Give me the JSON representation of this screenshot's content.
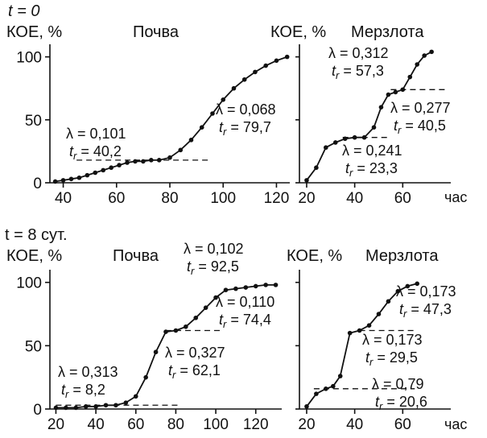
{
  "panels": [
    {
      "time_label": "t = 0",
      "ylabel": "КОЕ, %",
      "title": "Почва"
    },
    {
      "ylabel": "КОЕ, %",
      "title": "Мерзлота",
      "xunit": "час"
    },
    {
      "time_label": "t = 8 сут.",
      "ylabel": "КОЕ, %",
      "title": "Почва"
    },
    {
      "ylabel": "КОЕ, %",
      "title": "Мерзлота",
      "xunit": "час"
    }
  ],
  "chart_data": [
    {
      "type": "line",
      "title": "Почва",
      "ylabel": "КОЕ, %",
      "xlim": [
        35,
        125
      ],
      "ylim": [
        0,
        110
      ],
      "xticks": [
        40,
        60,
        80,
        100,
        120
      ],
      "yticks": [
        0,
        50,
        100
      ],
      "series": [
        {
          "x": [
            37,
            40,
            43,
            46,
            49,
            52,
            55,
            58,
            61,
            64,
            67,
            70,
            73,
            76,
            80,
            84,
            88,
            92,
            96,
            100,
            104,
            108,
            112,
            116,
            120,
            124
          ],
          "y": [
            1,
            2,
            3,
            4,
            6,
            8,
            10,
            12,
            14,
            16,
            17,
            17,
            18,
            18,
            20,
            26,
            34,
            44,
            55,
            66,
            75,
            82,
            88,
            93,
            97,
            100
          ]
        }
      ],
      "tangents": [
        {
          "x": [
            45,
            95
          ],
          "y": [
            18,
            18
          ]
        }
      ],
      "annotations": [
        {
          "lambda": "λ = 0,101",
          "tr": "40,2"
        },
        {
          "lambda": "λ = 0,068",
          "tr": "79,7"
        }
      ]
    },
    {
      "type": "line",
      "title": "Мерзлота",
      "ylabel": "КОЕ, %",
      "xlabel": "час",
      "xlim": [
        17,
        80
      ],
      "ylim": [
        0,
        110
      ],
      "xticks": [
        20,
        40,
        60
      ],
      "yticks": [],
      "series": [
        {
          "x": [
            20,
            24,
            28,
            32,
            36,
            40,
            44,
            48,
            51,
            54,
            57,
            60,
            63,
            66,
            69,
            72
          ],
          "y": [
            2,
            12,
            28,
            32,
            35,
            36,
            36,
            44,
            60,
            70,
            72,
            74,
            84,
            94,
            101,
            104
          ]
        }
      ],
      "tangents": [
        {
          "x": [
            35,
            55
          ],
          "y": [
            36,
            36
          ]
        },
        {
          "x": [
            55,
            78
          ],
          "y": [
            74,
            74
          ]
        }
      ],
      "annotations": [
        {
          "lambda": "λ = 0,312",
          "tr": "57,3"
        },
        {
          "lambda": "λ = 0,277",
          "tr": "40,5"
        },
        {
          "lambda": "λ = 0,241",
          "tr": "23,3"
        }
      ]
    },
    {
      "type": "line",
      "title": "Почва",
      "ylabel": "КОЕ, %",
      "xlim": [
        17,
        133
      ],
      "ylim": [
        0,
        110
      ],
      "xticks": [
        20,
        40,
        60,
        80,
        100,
        120
      ],
      "yticks": [
        0,
        50,
        100
      ],
      "series": [
        {
          "x": [
            20,
            25,
            30,
            35,
            40,
            45,
            50,
            55,
            60,
            65,
            70,
            75,
            80,
            85,
            90,
            95,
            100,
            105,
            110,
            115,
            120,
            125,
            130
          ],
          "y": [
            1,
            1,
            1,
            2,
            2,
            3,
            3,
            5,
            10,
            25,
            45,
            61,
            62,
            65,
            72,
            80,
            88,
            94,
            95,
            96,
            97,
            98,
            98
          ]
        }
      ],
      "tangents": [
        {
          "x": [
            20,
            82
          ],
          "y": [
            3,
            3
          ]
        },
        {
          "x": [
            75,
            102
          ],
          "y": [
            62,
            62
          ]
        }
      ],
      "annotations": [
        {
          "lambda": "λ = 0,102",
          "tr": "92,5"
        },
        {
          "lambda": "λ = 0,110",
          "tr": "74,4"
        },
        {
          "lambda": "λ = 0,327",
          "tr": "62,1"
        },
        {
          "lambda": "λ = 0,313",
          "tr": "8,2"
        }
      ]
    },
    {
      "type": "line",
      "title": "Мерзлота",
      "ylabel": "КОЕ, %",
      "xlabel": "час",
      "xlim": [
        17,
        80
      ],
      "ylim": [
        0,
        110
      ],
      "xticks": [
        20,
        40,
        60
      ],
      "yticks": [],
      "series": [
        {
          "x": [
            20,
            24,
            28,
            31,
            34,
            38,
            42,
            46,
            50,
            54,
            58,
            62,
            66
          ],
          "y": [
            2,
            12,
            16,
            18,
            26,
            60,
            62,
            66,
            75,
            85,
            93,
            97,
            99
          ]
        }
      ],
      "tangents": [
        {
          "x": [
            23,
            65
          ],
          "y": [
            16,
            16
          ]
        },
        {
          "x": [
            42,
            65
          ],
          "y": [
            62,
            62
          ]
        }
      ],
      "annotations": [
        {
          "lambda": "λ = 0,173",
          "tr": "47,3"
        },
        {
          "lambda": "λ = 0,173",
          "tr": "29,5"
        },
        {
          "lambda": "λ = 0,79",
          "tr": "20,6"
        }
      ]
    }
  ]
}
